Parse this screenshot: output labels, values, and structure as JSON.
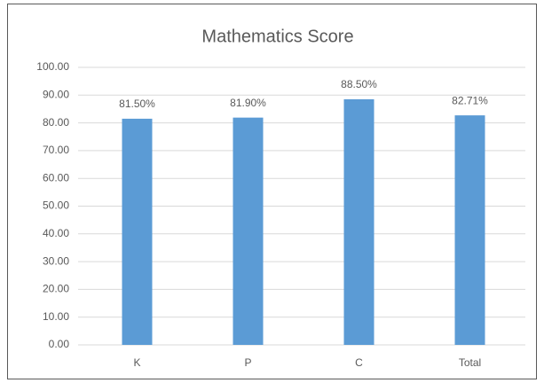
{
  "chart_data": {
    "type": "bar",
    "title": "Mathematics Score",
    "categories": [
      "K",
      "P",
      "C",
      "Total"
    ],
    "values": [
      81.5,
      81.9,
      88.5,
      82.71
    ],
    "value_labels": [
      "81.50%",
      "81.90%",
      "88.50%",
      "82.71%"
    ],
    "color": "#5b9bd5",
    "ylim": [
      0,
      100
    ],
    "yticks": [
      {
        "value": 0,
        "label": "0.00"
      },
      {
        "value": 10,
        "label": "10.00"
      },
      {
        "value": 20,
        "label": "20.00"
      },
      {
        "value": 30,
        "label": "30.00"
      },
      {
        "value": 40,
        "label": "40.00"
      },
      {
        "value": 50,
        "label": "50.00"
      },
      {
        "value": 60,
        "label": "60.00"
      },
      {
        "value": 70,
        "label": "70.00"
      },
      {
        "value": 80,
        "label": "80.00"
      },
      {
        "value": 90,
        "label": "90.00"
      },
      {
        "value": 100,
        "label": "100.00"
      }
    ],
    "grid": true
  }
}
